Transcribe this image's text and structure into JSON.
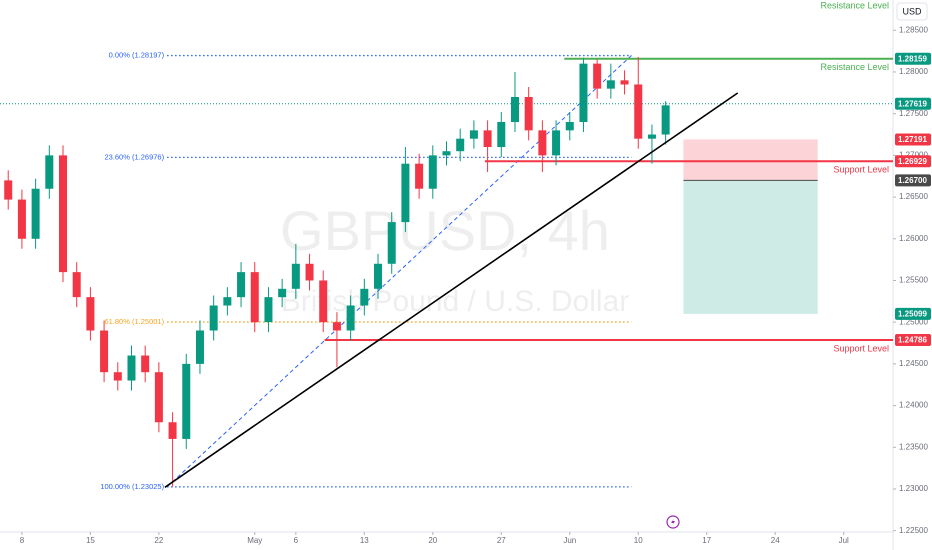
{
  "chart_data": {
    "type": "candlestick",
    "title": "GBPUSD, 4h",
    "subtitle": "British Pound / U.S. Dollar",
    "currency": "USD",
    "up_color": "#089981",
    "down_color": "#f23645",
    "xlim": [
      -0.6,
      64.6
    ],
    "ylim": [
      1.22484,
      1.28863
    ],
    "xticks": [
      {
        "value": 1,
        "label": "8"
      },
      {
        "value": 6,
        "label": "15"
      },
      {
        "value": 11,
        "label": "22"
      },
      {
        "value": 18,
        "label": "May"
      },
      {
        "value": 21,
        "label": "6"
      },
      {
        "value": 26,
        "label": "13"
      },
      {
        "value": 31,
        "label": "20"
      },
      {
        "value": 36,
        "label": "27"
      },
      {
        "value": 41,
        "label": "Jun"
      },
      {
        "value": 46,
        "label": "10"
      },
      {
        "value": 51,
        "label": "17"
      },
      {
        "value": 56,
        "label": "24"
      },
      {
        "value": 61,
        "label": "Jul"
      }
    ],
    "yticks": [
      {
        "value": 1.225,
        "label": "1.22500"
      },
      {
        "value": 1.23,
        "label": "1.23000"
      },
      {
        "value": 1.235,
        "label": "1.23500"
      },
      {
        "value": 1.24,
        "label": "1.24000"
      },
      {
        "value": 1.245,
        "label": "1.24500"
      },
      {
        "value": 1.25,
        "label": "1.25000"
      },
      {
        "value": 1.255,
        "label": "1.25500"
      },
      {
        "value": 1.26,
        "label": "1.26000"
      },
      {
        "value": 1.265,
        "label": "1.26500"
      },
      {
        "value": 1.27,
        "label": "1.27000"
      },
      {
        "value": 1.275,
        "label": "1.27500"
      },
      {
        "value": 1.28,
        "label": "1.28000"
      },
      {
        "value": 1.285,
        "label": "1.28500"
      }
    ],
    "open": [
      1.267,
      1.2647,
      1.26,
      1.266,
      1.27,
      1.256,
      1.253,
      1.249,
      1.244,
      1.243,
      1.246,
      1.244,
      1.238,
      1.236,
      1.245,
      1.249,
      1.252,
      1.253,
      1.256,
      1.25,
      1.253,
      1.254,
      1.257,
      1.255,
      1.25,
      1.249,
      1.252,
      1.254,
      1.257,
      1.262,
      1.269,
      1.266,
      1.27,
      1.2705,
      1.272,
      1.273,
      1.271,
      1.274,
      1.277,
      1.273,
      1.27,
      1.273,
      1.274,
      1.281,
      1.278,
      1.279,
      1.2785,
      1.272,
      1.2725
    ],
    "high": [
      1.2682,
      1.2659,
      1.2672,
      1.2712,
      1.2712,
      1.2572,
      1.2542,
      1.2502,
      1.2452,
      1.2472,
      1.2472,
      1.2452,
      1.2392,
      1.2462,
      1.2502,
      1.2532,
      1.2542,
      1.2572,
      1.2572,
      1.2542,
      1.2552,
      1.2594,
      1.2582,
      1.2562,
      1.2512,
      1.2532,
      1.2552,
      1.2582,
      1.2632,
      1.271,
      1.2702,
      1.2712,
      1.2717,
      1.2732,
      1.2742,
      1.2742,
      1.2752,
      1.28,
      1.2782,
      1.2742,
      1.2742,
      1.2752,
      1.2817,
      1.2815,
      1.281,
      1.2802,
      1.2818,
      1.2737,
      1.2765
    ],
    "low": [
      1.2635,
      1.2588,
      1.2588,
      1.2648,
      1.2548,
      1.2518,
      1.2478,
      1.2428,
      1.2418,
      1.2418,
      1.2428,
      1.2368,
      1.2303,
      1.2348,
      1.2438,
      1.2478,
      1.2508,
      1.2518,
      1.2488,
      1.2488,
      1.2518,
      1.2528,
      1.2538,
      1.2488,
      1.2446,
      1.2478,
      1.2508,
      1.2528,
      1.2558,
      1.2608,
      1.2648,
      1.2648,
      1.2688,
      1.2693,
      1.2708,
      1.268,
      1.2698,
      1.2728,
      1.2718,
      1.268,
      1.2688,
      1.2718,
      1.2728,
      1.2768,
      1.2768,
      1.2773,
      1.2708,
      1.269,
      1.2713
    ],
    "close": [
      1.2647,
      1.26,
      1.266,
      1.27,
      1.256,
      1.253,
      1.249,
      1.244,
      1.243,
      1.246,
      1.244,
      1.238,
      1.236,
      1.245,
      1.249,
      1.252,
      1.253,
      1.256,
      1.25,
      1.253,
      1.254,
      1.257,
      1.255,
      1.25,
      1.249,
      1.252,
      1.254,
      1.257,
      1.262,
      1.269,
      1.266,
      1.27,
      1.2705,
      1.272,
      1.273,
      1.271,
      1.274,
      1.277,
      1.273,
      1.27,
      1.273,
      1.274,
      1.281,
      1.278,
      1.279,
      1.2785,
      1.272,
      1.2725,
      1.276
    ],
    "price_line": {
      "value": 1.27619,
      "label": "1.27619",
      "color": "#089981"
    },
    "fib": {
      "x": [
        11.6,
        45.5
      ],
      "levels": [
        {
          "label": "0.00% (1.28197)",
          "value": 1.28197,
          "color": "#2962ff"
        },
        {
          "label": "23.60% (1.26976)",
          "value": 1.26976,
          "color": "#2962ff"
        },
        {
          "label": "61.80% (1.25001)",
          "value": 1.25001,
          "color": "#f5a623"
        },
        {
          "label": "100.00% (1.23025)",
          "value": 1.23025,
          "color": "#2962ff"
        }
      ]
    },
    "levels": [
      {
        "name": "Resistance Level",
        "value": 1.28159,
        "label": "1.28159",
        "color": "#4caf50",
        "from": 40.6
      },
      {
        "name": "Support Level",
        "value": 1.26929,
        "label": "1.26929",
        "color": "#f23645",
        "from": 34.8
      },
      {
        "name": "Support Level",
        "value": 1.24786,
        "label": "1.24786",
        "color": "#f23645",
        "from": 23.1
      }
    ],
    "annotation": {
      "text": "Resistance Level",
      "color": "#4caf50"
    },
    "trend_line": {
      "x": [
        11.44,
        53.26
      ],
      "y": [
        1.2302,
        1.27748
      ],
      "color": "#000000"
    },
    "position": {
      "x": [
        49.3,
        59.1
      ],
      "stop": {
        "value": 1.27191,
        "label": "1.27191",
        "color": "#f23645"
      },
      "entry": {
        "value": 1.267,
        "label": "1.26700",
        "color": "#4a4a4a"
      },
      "target": {
        "value": 1.25099,
        "label": "1.25099",
        "color": "#089981"
      }
    }
  }
}
